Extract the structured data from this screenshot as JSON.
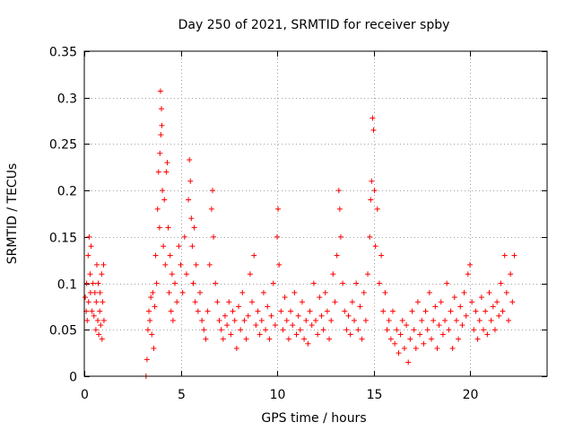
{
  "chart_data": {
    "type": "scatter",
    "title": "Day 250 of 2021, SRMTID for receiver spby",
    "xlabel": "GPS time / hours",
    "ylabel": "SRMTID / TECUs",
    "xlim": [
      0,
      24
    ],
    "ylim": [
      0,
      0.35
    ],
    "xticks": [
      0,
      5,
      10,
      15,
      20
    ],
    "xtick_labels": [
      "0",
      "5",
      "10",
      "15",
      "20"
    ],
    "yticks": [
      0,
      0.05,
      0.1,
      0.15,
      0.2,
      0.25,
      0.3,
      0.35
    ],
    "ytick_labels": [
      "0",
      "0.05",
      "0.1",
      "0.15",
      "0.2",
      "0.25",
      "0.3",
      "0.35"
    ],
    "grid": true,
    "marker": "plus",
    "color": "#ff0000",
    "series": [
      {
        "name": "SRMTID",
        "points": [
          [
            0.05,
            0.085
          ],
          [
            0.1,
            0.07
          ],
          [
            0.12,
            0.1
          ],
          [
            0.15,
            0.06
          ],
          [
            0.2,
            0.13
          ],
          [
            0.22,
            0.08
          ],
          [
            0.25,
            0.15
          ],
          [
            0.3,
            0.11
          ],
          [
            0.32,
            0.09
          ],
          [
            0.35,
            0.14
          ],
          [
            0.4,
            0.07
          ],
          [
            0.45,
            0.1
          ],
          [
            0.5,
            0.065
          ],
          [
            0.55,
            0.09
          ],
          [
            0.6,
            0.05
          ],
          [
            0.62,
            0.08
          ],
          [
            0.65,
            0.12
          ],
          [
            0.7,
            0.06
          ],
          [
            0.72,
            0.1
          ],
          [
            0.75,
            0.045
          ],
          [
            0.8,
            0.07
          ],
          [
            0.82,
            0.09
          ],
          [
            0.85,
            0.055
          ],
          [
            0.9,
            0.11
          ],
          [
            0.92,
            0.04
          ],
          [
            0.95,
            0.08
          ],
          [
            1.0,
            0.12
          ],
          [
            1.02,
            0.06
          ],
          [
            3.2,
            0.0
          ],
          [
            3.25,
            0.018
          ],
          [
            3.3,
            0.05
          ],
          [
            3.35,
            0.07
          ],
          [
            3.4,
            0.06
          ],
          [
            3.45,
            0.085
          ],
          [
            3.5,
            0.045
          ],
          [
            3.55,
            0.09
          ],
          [
            3.6,
            0.03
          ],
          [
            3.65,
            0.075
          ],
          [
            3.7,
            0.13
          ],
          [
            3.75,
            0.1
          ],
          [
            3.8,
            0.18
          ],
          [
            3.85,
            0.22
          ],
          [
            3.9,
            0.16
          ],
          [
            3.92,
            0.24
          ],
          [
            3.95,
            0.307
          ],
          [
            3.97,
            0.26
          ],
          [
            4.0,
            0.288
          ],
          [
            4.02,
            0.27
          ],
          [
            4.05,
            0.2
          ],
          [
            4.1,
            0.14
          ],
          [
            4.15,
            0.19
          ],
          [
            4.2,
            0.12
          ],
          [
            4.25,
            0.22
          ],
          [
            4.3,
            0.23
          ],
          [
            4.35,
            0.16
          ],
          [
            4.4,
            0.09
          ],
          [
            4.45,
            0.13
          ],
          [
            4.5,
            0.07
          ],
          [
            4.55,
            0.11
          ],
          [
            4.6,
            0.06
          ],
          [
            4.7,
            0.1
          ],
          [
            4.8,
            0.08
          ],
          [
            4.9,
            0.14
          ],
          [
            5.0,
            0.12
          ],
          [
            5.1,
            0.09
          ],
          [
            5.2,
            0.15
          ],
          [
            5.3,
            0.11
          ],
          [
            5.4,
            0.19
          ],
          [
            5.45,
            0.233
          ],
          [
            5.5,
            0.21
          ],
          [
            5.55,
            0.17
          ],
          [
            5.6,
            0.14
          ],
          [
            5.65,
            0.1
          ],
          [
            5.7,
            0.16
          ],
          [
            5.75,
            0.08
          ],
          [
            5.8,
            0.12
          ],
          [
            5.9,
            0.07
          ],
          [
            6.0,
            0.09
          ],
          [
            6.1,
            0.06
          ],
          [
            6.2,
            0.05
          ],
          [
            6.3,
            0.04
          ],
          [
            6.4,
            0.07
          ],
          [
            6.5,
            0.12
          ],
          [
            6.6,
            0.18
          ],
          [
            6.65,
            0.2
          ],
          [
            6.7,
            0.15
          ],
          [
            6.8,
            0.1
          ],
          [
            6.9,
            0.08
          ],
          [
            7.0,
            0.06
          ],
          [
            7.1,
            0.05
          ],
          [
            7.2,
            0.04
          ],
          [
            7.3,
            0.065
          ],
          [
            7.4,
            0.055
          ],
          [
            7.5,
            0.08
          ],
          [
            7.6,
            0.045
          ],
          [
            7.7,
            0.07
          ],
          [
            7.8,
            0.06
          ],
          [
            7.9,
            0.03
          ],
          [
            8.0,
            0.075
          ],
          [
            8.1,
            0.05
          ],
          [
            8.2,
            0.09
          ],
          [
            8.3,
            0.06
          ],
          [
            8.4,
            0.04
          ],
          [
            8.5,
            0.065
          ],
          [
            8.6,
            0.11
          ],
          [
            8.7,
            0.08
          ],
          [
            8.8,
            0.13
          ],
          [
            8.9,
            0.055
          ],
          [
            9.0,
            0.07
          ],
          [
            9.1,
            0.045
          ],
          [
            9.2,
            0.06
          ],
          [
            9.3,
            0.09
          ],
          [
            9.4,
            0.05
          ],
          [
            9.5,
            0.075
          ],
          [
            9.6,
            0.04
          ],
          [
            9.7,
            0.065
          ],
          [
            9.8,
            0.1
          ],
          [
            9.9,
            0.055
          ],
          [
            10.0,
            0.15
          ],
          [
            10.05,
            0.18
          ],
          [
            10.1,
            0.12
          ],
          [
            10.2,
            0.07
          ],
          [
            10.3,
            0.05
          ],
          [
            10.4,
            0.085
          ],
          [
            10.5,
            0.06
          ],
          [
            10.6,
            0.04
          ],
          [
            10.7,
            0.07
          ],
          [
            10.8,
            0.055
          ],
          [
            10.9,
            0.09
          ],
          [
            11.0,
            0.045
          ],
          [
            11.1,
            0.065
          ],
          [
            11.2,
            0.05
          ],
          [
            11.3,
            0.08
          ],
          [
            11.4,
            0.04
          ],
          [
            11.5,
            0.06
          ],
          [
            11.6,
            0.035
          ],
          [
            11.7,
            0.07
          ],
          [
            11.8,
            0.055
          ],
          [
            11.9,
            0.1
          ],
          [
            12.0,
            0.06
          ],
          [
            12.1,
            0.045
          ],
          [
            12.2,
            0.085
          ],
          [
            12.3,
            0.065
          ],
          [
            12.4,
            0.05
          ],
          [
            12.5,
            0.09
          ],
          [
            12.6,
            0.07
          ],
          [
            12.7,
            0.04
          ],
          [
            12.8,
            0.06
          ],
          [
            12.9,
            0.11
          ],
          [
            13.0,
            0.08
          ],
          [
            13.1,
            0.13
          ],
          [
            13.2,
            0.2
          ],
          [
            13.25,
            0.18
          ],
          [
            13.3,
            0.15
          ],
          [
            13.4,
            0.1
          ],
          [
            13.5,
            0.07
          ],
          [
            13.6,
            0.05
          ],
          [
            13.7,
            0.065
          ],
          [
            13.8,
            0.045
          ],
          [
            13.9,
            0.08
          ],
          [
            14.0,
            0.06
          ],
          [
            14.1,
            0.1
          ],
          [
            14.2,
            0.05
          ],
          [
            14.3,
            0.075
          ],
          [
            14.4,
            0.04
          ],
          [
            14.5,
            0.09
          ],
          [
            14.6,
            0.06
          ],
          [
            14.7,
            0.11
          ],
          [
            14.8,
            0.15
          ],
          [
            14.85,
            0.19
          ],
          [
            14.9,
            0.21
          ],
          [
            14.95,
            0.278
          ],
          [
            15.0,
            0.265
          ],
          [
            15.05,
            0.2
          ],
          [
            15.1,
            0.14
          ],
          [
            15.2,
            0.18
          ],
          [
            15.3,
            0.1
          ],
          [
            15.4,
            0.13
          ],
          [
            15.5,
            0.07
          ],
          [
            15.6,
            0.09
          ],
          [
            15.7,
            0.05
          ],
          [
            15.8,
            0.06
          ],
          [
            15.9,
            0.04
          ],
          [
            16.0,
            0.07
          ],
          [
            16.1,
            0.035
          ],
          [
            16.2,
            0.05
          ],
          [
            16.3,
            0.025
          ],
          [
            16.4,
            0.045
          ],
          [
            16.5,
            0.06
          ],
          [
            16.6,
            0.03
          ],
          [
            16.7,
            0.055
          ],
          [
            16.8,
            0.015
          ],
          [
            16.9,
            0.04
          ],
          [
            17.0,
            0.07
          ],
          [
            17.1,
            0.05
          ],
          [
            17.2,
            0.03
          ],
          [
            17.3,
            0.08
          ],
          [
            17.4,
            0.045
          ],
          [
            17.5,
            0.06
          ],
          [
            17.6,
            0.035
          ],
          [
            17.7,
            0.07
          ],
          [
            17.8,
            0.05
          ],
          [
            17.9,
            0.09
          ],
          [
            18.0,
            0.04
          ],
          [
            18.1,
            0.06
          ],
          [
            18.2,
            0.075
          ],
          [
            18.3,
            0.03
          ],
          [
            18.4,
            0.055
          ],
          [
            18.5,
            0.08
          ],
          [
            18.6,
            0.045
          ],
          [
            18.7,
            0.06
          ],
          [
            18.8,
            0.1
          ],
          [
            18.9,
            0.05
          ],
          [
            19.0,
            0.07
          ],
          [
            19.1,
            0.03
          ],
          [
            19.2,
            0.085
          ],
          [
            19.3,
            0.06
          ],
          [
            19.4,
            0.04
          ],
          [
            19.5,
            0.075
          ],
          [
            19.6,
            0.055
          ],
          [
            19.7,
            0.09
          ],
          [
            19.8,
            0.065
          ],
          [
            19.9,
            0.11
          ],
          [
            20.0,
            0.12
          ],
          [
            20.1,
            0.08
          ],
          [
            20.2,
            0.05
          ],
          [
            20.3,
            0.07
          ],
          [
            20.4,
            0.04
          ],
          [
            20.5,
            0.06
          ],
          [
            20.6,
            0.085
          ],
          [
            20.7,
            0.05
          ],
          [
            20.8,
            0.07
          ],
          [
            20.9,
            0.045
          ],
          [
            21.0,
            0.09
          ],
          [
            21.1,
            0.06
          ],
          [
            21.2,
            0.075
          ],
          [
            21.3,
            0.05
          ],
          [
            21.4,
            0.08
          ],
          [
            21.5,
            0.065
          ],
          [
            21.6,
            0.1
          ],
          [
            21.7,
            0.07
          ],
          [
            21.8,
            0.13
          ],
          [
            21.9,
            0.09
          ],
          [
            22.0,
            0.06
          ],
          [
            22.1,
            0.11
          ],
          [
            22.2,
            0.08
          ],
          [
            22.3,
            0.13
          ]
        ]
      }
    ]
  }
}
